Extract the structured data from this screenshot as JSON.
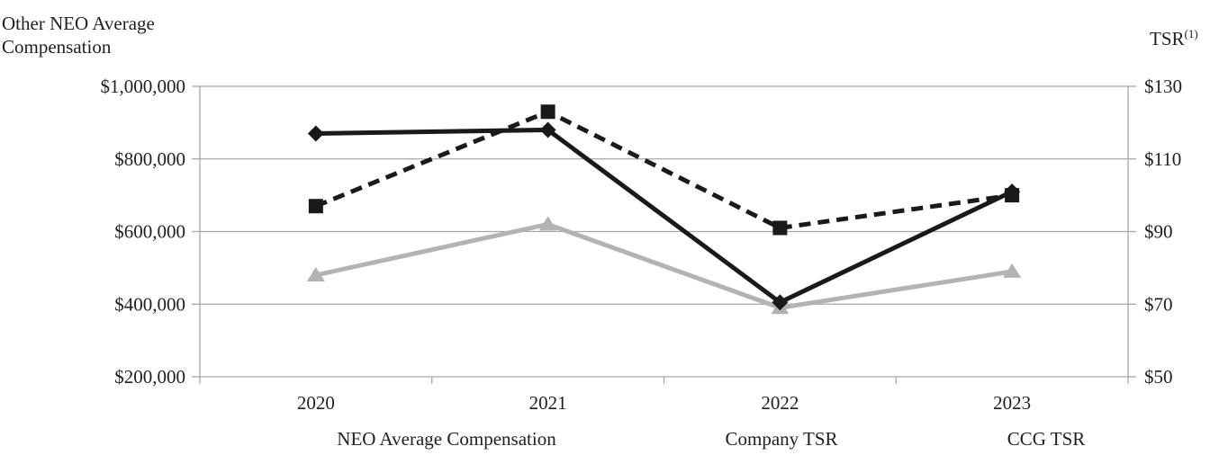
{
  "chart_data": {
    "type": "line",
    "categories": [
      "2020",
      "2021",
      "2022",
      "2023"
    ],
    "left_axis": {
      "title_line1": "Other NEO Average",
      "title_line2": "Compensation",
      "min": 200000,
      "max": 1000000,
      "step": 200000,
      "tick_values": [
        1000000,
        800000,
        600000,
        400000,
        200000
      ],
      "tick_labels": [
        "$1,000,000",
        "$800,000",
        "$600,000",
        "$400,000",
        "$200,000"
      ]
    },
    "right_axis": {
      "title": "TSR",
      "title_superscript": "(1)",
      "min": 50,
      "max": 130,
      "step": 20,
      "tick_values": [
        130,
        110,
        90,
        70,
        50
      ],
      "tick_labels": [
        "$130",
        "$110",
        "$90",
        "$70",
        "$50"
      ]
    },
    "series": [
      {
        "name": "NEO Average Compensation",
        "axis": "left",
        "values": [
          870000,
          880000,
          405000,
          710000
        ],
        "color": "#1a1a1a",
        "line_style": "solid",
        "marker": "diamond"
      },
      {
        "name": "Company TSR",
        "axis": "right",
        "values": [
          97,
          123,
          91,
          100
        ],
        "color": "#1a1a1a",
        "line_style": "dashed",
        "marker": "square"
      },
      {
        "name": "CCG TSR",
        "axis": "right",
        "values": [
          78,
          92,
          69,
          79
        ],
        "color": "#b3b3b3",
        "line_style": "solid",
        "marker": "triangle"
      }
    ],
    "legend": {
      "position": "bottom",
      "items": [
        "NEO Average Compensation",
        "Company TSR",
        "CCG TSR"
      ]
    },
    "grid": {
      "horizontal": true,
      "vertical": false
    }
  },
  "colors": {
    "background": "#ffffff",
    "text": "#1f1f1f",
    "grid": "#a8a8a8",
    "series_black": "#1a1a1a",
    "series_gray": "#b3b3b3"
  }
}
